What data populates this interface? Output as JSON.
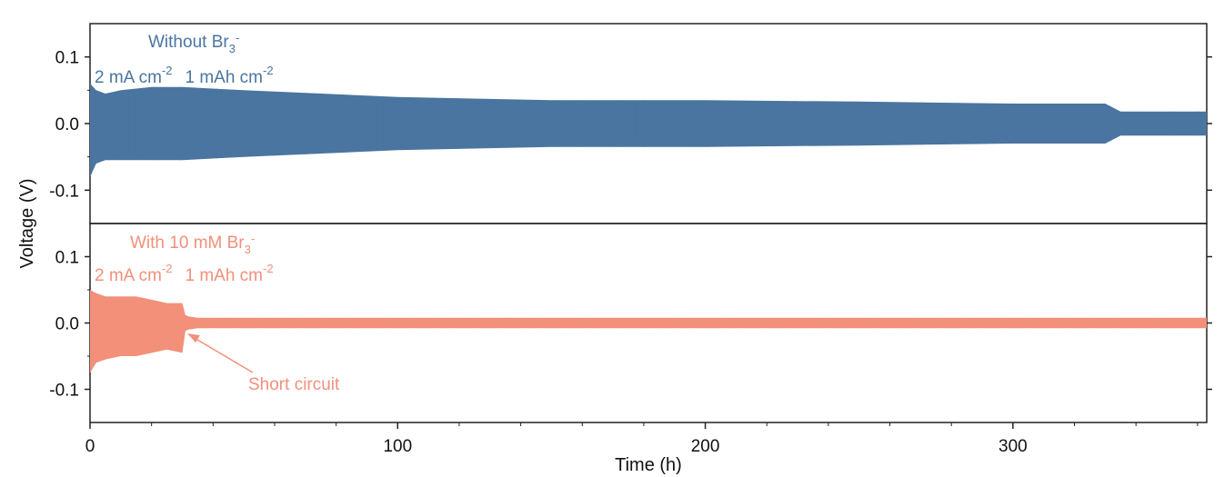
{
  "chart_data": [
    {
      "type": "line",
      "label_main": "Without Br",
      "label_sub": "3",
      "label_sup": "-",
      "condition_current": "2 mA cm",
      "condition_current_sup": "-2",
      "condition_capacity": "1 mAh cm",
      "condition_capacity_sup": "-2",
      "color": "#4a75a0",
      "xlim": [
        0,
        363
      ],
      "ylim": [
        -0.15,
        0.15
      ],
      "yticks": [
        0.1,
        0.0,
        -0.1
      ],
      "ytick_labels": [
        "0.1",
        "0.0",
        "-0.1"
      ],
      "envelope": {
        "x": [
          0,
          2,
          5,
          10,
          20,
          30,
          50,
          100,
          150,
          200,
          250,
          300,
          330,
          335,
          363
        ],
        "upper": [
          0.06,
          0.05,
          0.045,
          0.05,
          0.055,
          0.055,
          0.05,
          0.04,
          0.035,
          0.035,
          0.033,
          0.03,
          0.03,
          0.018,
          0.018
        ],
        "lower": [
          -0.08,
          -0.06,
          -0.055,
          -0.055,
          -0.055,
          -0.055,
          -0.05,
          -0.04,
          -0.035,
          -0.035,
          -0.033,
          -0.03,
          -0.03,
          -0.018,
          -0.018
        ]
      }
    },
    {
      "type": "line",
      "label_main": "With 10 mM Br",
      "label_sub": "3",
      "label_sup": "-",
      "condition_current": "2 mA cm",
      "condition_current_sup": "-2",
      "condition_capacity": "1 mAh cm",
      "condition_capacity_sup": "-2",
      "annotation": "Short circuit",
      "annotation_point": [
        31,
        -0.012
      ],
      "color": "#f2907a",
      "xlim": [
        0,
        363
      ],
      "ylim": [
        -0.15,
        0.15
      ],
      "yticks": [
        0.1,
        0.0,
        -0.1
      ],
      "ytick_labels": [
        "0.1",
        "0.0",
        "-0.1"
      ],
      "envelope": {
        "x": [
          0,
          2,
          5,
          10,
          15,
          20,
          25,
          30,
          31,
          32,
          35,
          363
        ],
        "upper": [
          0.05,
          0.045,
          0.04,
          0.04,
          0.04,
          0.035,
          0.03,
          0.03,
          0.012,
          0.01,
          0.008,
          0.008
        ],
        "lower": [
          -0.075,
          -0.06,
          -0.055,
          -0.05,
          -0.05,
          -0.045,
          -0.04,
          -0.045,
          -0.012,
          -0.01,
          -0.008,
          -0.008
        ]
      }
    }
  ],
  "axes": {
    "ylabel": "Voltage (V)",
    "xlabel": "Time (h)",
    "xticks": [
      0,
      100,
      200,
      300
    ],
    "xtick_labels": [
      "0",
      "100",
      "200",
      "300"
    ]
  }
}
